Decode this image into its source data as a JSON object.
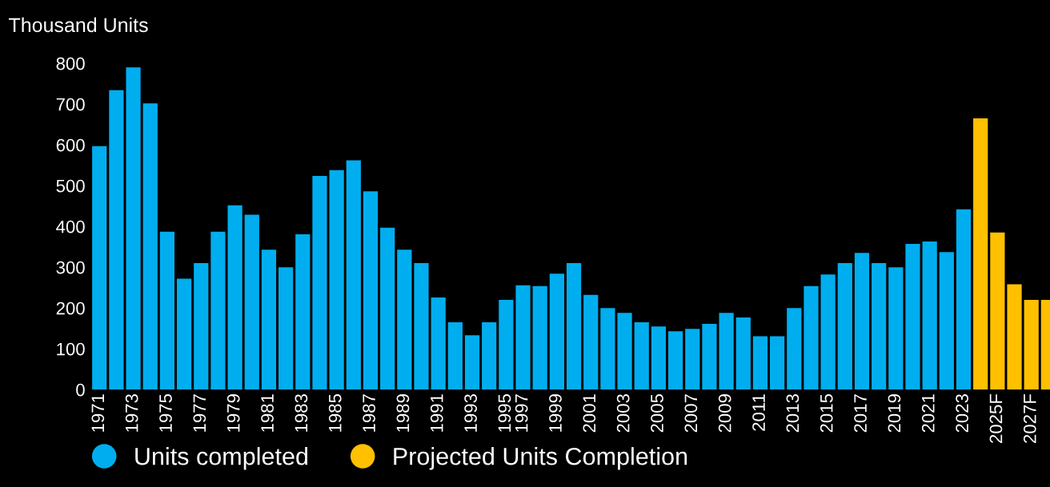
{
  "chart_data": {
    "type": "bar",
    "ylabel": "Thousand Units",
    "categories": [
      "1971",
      null,
      "1973",
      null,
      "1975",
      null,
      "1977",
      null,
      "1979",
      null,
      "1981",
      null,
      "1983",
      null,
      "1985",
      null,
      "1987",
      null,
      "1989",
      null,
      "1991",
      null,
      "1993",
      null,
      "1995",
      "1997",
      null,
      "1999",
      null,
      "2001",
      null,
      "2003",
      null,
      "2005",
      null,
      "2007",
      null,
      "2009",
      null,
      "2011",
      null,
      "2013",
      null,
      "2015",
      null,
      "2017",
      null,
      "2019",
      null,
      "2021",
      null,
      "2023",
      null,
      "2025F",
      null,
      "2027F",
      null
    ],
    "series": [
      {
        "name": "Units completed",
        "color": "#00aeef",
        "values": [
          597,
          734,
          790,
          702,
          387,
          272,
          310,
          387,
          452,
          429,
          343,
          300,
          381,
          524,
          538,
          562,
          486,
          397,
          343,
          310,
          226,
          165,
          133,
          165,
          220,
          256,
          254,
          284,
          310,
          232,
          200,
          188,
          165,
          155,
          143,
          149,
          161,
          188,
          177,
          131,
          131,
          200,
          254,
          282,
          310,
          335,
          310,
          300,
          357,
          363,
          337,
          442,
          null,
          null,
          null,
          null,
          null
        ]
      },
      {
        "name": "Projected Units Completion",
        "color": "#ffc000",
        "values": [
          null,
          null,
          null,
          null,
          null,
          null,
          null,
          null,
          null,
          null,
          null,
          null,
          null,
          null,
          null,
          null,
          null,
          null,
          null,
          null,
          null,
          null,
          null,
          null,
          null,
          null,
          null,
          null,
          null,
          null,
          null,
          null,
          null,
          null,
          null,
          null,
          null,
          null,
          null,
          null,
          null,
          null,
          null,
          null,
          null,
          null,
          null,
          null,
          null,
          null,
          null,
          null,
          665,
          385,
          258,
          220,
          220
        ]
      }
    ],
    "ylim": [
      0,
      800
    ],
    "yticks": [
      0,
      100,
      200,
      300,
      400,
      500,
      600,
      700,
      800
    ],
    "legend": "bottom left"
  }
}
